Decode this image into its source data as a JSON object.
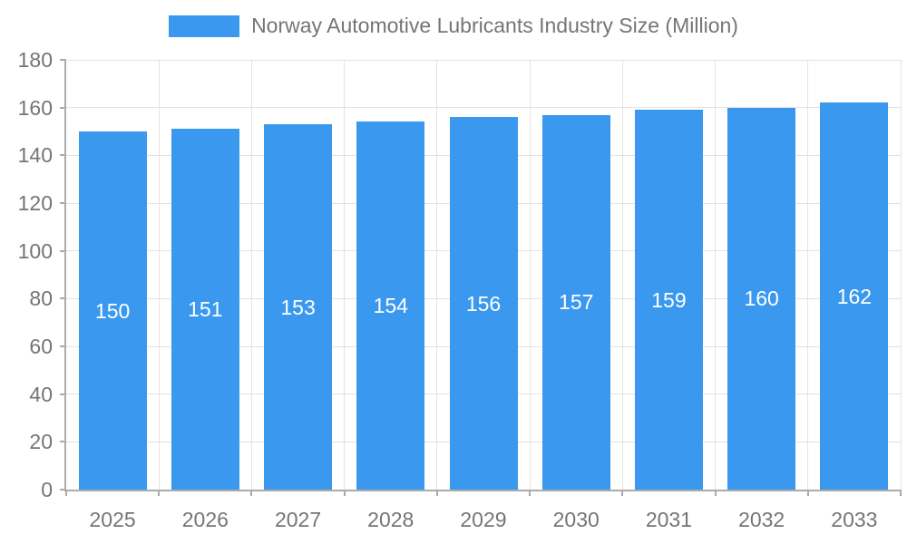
{
  "chart_data": {
    "type": "bar",
    "title": "Norway Automotive Lubricants Industry Size (Million)",
    "categories": [
      "2025",
      "2026",
      "2027",
      "2028",
      "2029",
      "2030",
      "2031",
      "2032",
      "2033"
    ],
    "values": [
      150,
      151,
      153,
      154,
      156,
      157,
      159,
      160,
      162
    ],
    "xlabel": "",
    "ylabel": "",
    "ylim": [
      0,
      180
    ],
    "ytick_step": 20,
    "grid": true,
    "legend_position": "top",
    "value_labels": "inside-center"
  },
  "colors": {
    "bar": "#3a99ee",
    "grid": "#e3e3e3",
    "axis": "#ababab",
    "text": "#757575",
    "value_label": "#ffffff",
    "background": "#ffffff"
  }
}
